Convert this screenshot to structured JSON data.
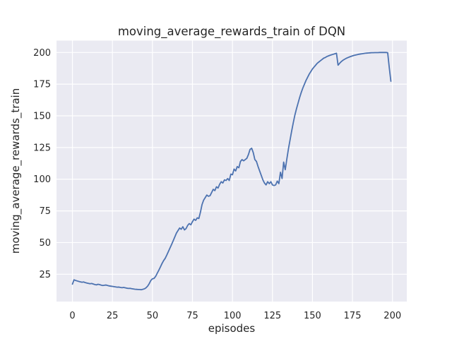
{
  "chart_data": {
    "type": "line",
    "title": "moving_average_rewards_train of DQN",
    "xlabel": "episodes",
    "ylabel": "moving_average_rewards_train",
    "x_start": 0,
    "x_step": 1,
    "values": [
      17.2,
      20.6,
      20.1,
      19.7,
      19.3,
      19.0,
      18.7,
      18.9,
      18.4,
      18.1,
      17.8,
      17.5,
      17.7,
      17.3,
      16.9,
      16.6,
      17.1,
      16.8,
      16.4,
      16.1,
      16.3,
      16.5,
      16.1,
      15.8,
      15.6,
      15.4,
      15.2,
      15.0,
      14.8,
      14.9,
      14.6,
      14.4,
      14.6,
      14.3,
      14.0,
      13.8,
      13.9,
      13.6,
      13.4,
      13.2,
      13.1,
      13.0,
      12.9,
      12.8,
      13.1,
      13.5,
      14.3,
      15.6,
      17.6,
      20.1,
      21.4,
      21.7,
      23.3,
      25.8,
      28.2,
      30.8,
      33.5,
      35.8,
      37.6,
      40.2,
      43.0,
      45.8,
      48.6,
      51.5,
      54.5,
      57.5,
      59.5,
      61.5,
      60.5,
      62.5,
      60.0,
      61.0,
      63.5,
      65.0,
      64.0,
      66.5,
      68.5,
      67.5,
      69.5,
      69.0,
      74.0,
      80.0,
      83.5,
      85.5,
      87.5,
      86.5,
      87.0,
      89.5,
      92.0,
      91.0,
      94.0,
      93.0,
      96.0,
      98.0,
      97.0,
      99.5,
      99.0,
      100.5,
      99.0,
      104.0,
      103.5,
      108.0,
      106.5,
      110.0,
      109.0,
      114.0,
      115.5,
      114.5,
      115.5,
      116.5,
      119.5,
      123.5,
      124.5,
      121.0,
      115.5,
      114.0,
      110.0,
      106.5,
      103.0,
      99.5,
      97.0,
      95.5,
      98.0,
      96.5,
      98.0,
      95.5,
      95.0,
      95.5,
      98.5,
      96.5,
      105.5,
      100.5,
      113.5,
      107.5,
      116.0,
      124.0,
      131.0,
      138.0,
      144.5,
      150.5,
      155.5,
      160.0,
      164.5,
      168.5,
      172.0,
      175.0,
      178.0,
      180.5,
      183.0,
      185.0,
      187.0,
      188.5,
      190.0,
      191.5,
      192.5,
      193.5,
      194.5,
      195.5,
      196.0,
      196.8,
      197.3,
      197.8,
      198.2,
      198.6,
      199.0,
      199.4,
      190.0,
      191.5,
      192.8,
      193.8,
      194.6,
      195.3,
      195.9,
      196.4,
      196.9,
      197.3,
      197.7,
      198.0,
      198.3,
      198.6,
      198.8,
      199.0,
      199.2,
      199.4,
      199.5,
      199.6,
      199.7,
      199.8,
      199.8,
      199.9,
      199.9,
      199.9,
      200.0,
      200.0,
      200.0,
      200.0,
      200.0,
      199.8,
      188.0,
      177.3
    ],
    "x_ticks": [
      0,
      25,
      50,
      75,
      100,
      125,
      150,
      175,
      200
    ],
    "y_ticks": [
      25,
      50,
      75,
      100,
      125,
      150,
      175,
      200
    ],
    "xlim": [
      -9.95,
      208.95
    ],
    "ylim": [
      3.44,
      209.36
    ],
    "grid": true,
    "legend": "none",
    "colors": {
      "line": "#4c72b0",
      "plot_background": "#eaeaf2",
      "grid": "#ffffff",
      "text": "#262626",
      "figure_background": "#ffffff"
    }
  }
}
